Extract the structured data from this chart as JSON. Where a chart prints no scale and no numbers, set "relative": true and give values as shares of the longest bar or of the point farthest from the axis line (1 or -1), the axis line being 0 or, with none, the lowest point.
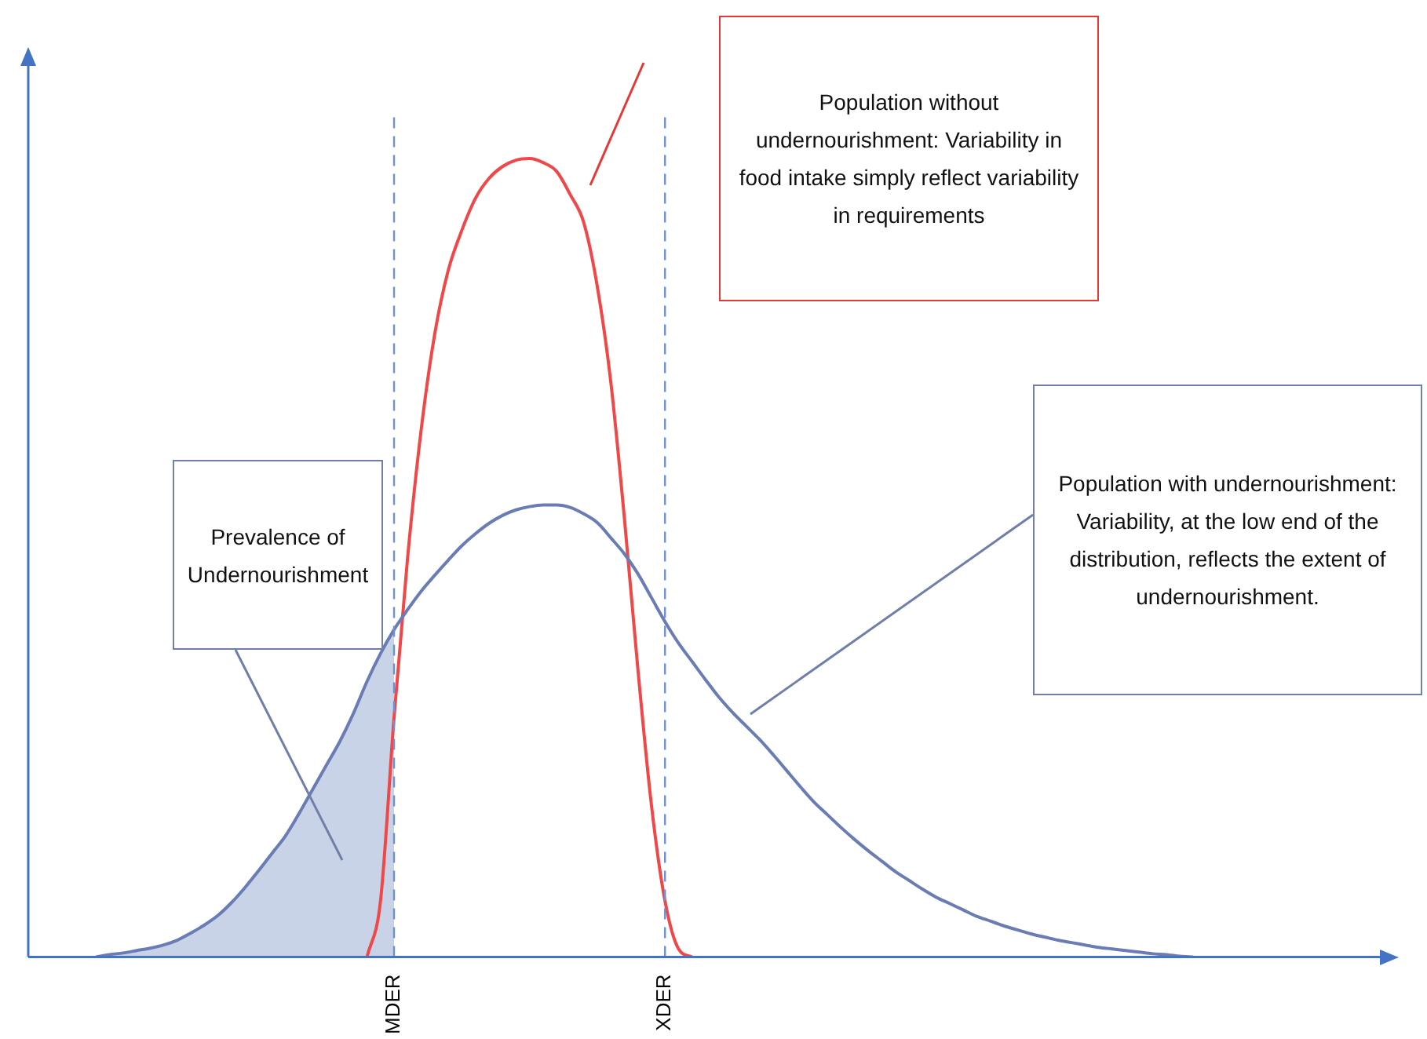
{
  "chart_data": {
    "type": "line",
    "relative": true,
    "marker": "none",
    "grid": false,
    "legend": false,
    "tick_labels": "x",
    "categories": [
      null,
      null,
      null,
      null,
      null,
      null,
      null,
      null,
      null,
      null,
      null,
      null,
      null,
      null,
      null,
      null,
      null,
      null,
      null,
      null,
      null,
      null,
      null,
      null,
      null,
      null,
      null,
      "MDER",
      null,
      null,
      null,
      null,
      null,
      null,
      null,
      null,
      null,
      null,
      null,
      null,
      null,
      null,
      null,
      null,
      null,
      null,
      null,
      "XDER",
      null,
      null,
      null,
      null,
      null,
      null,
      null,
      null,
      null,
      null,
      null,
      null,
      null,
      null,
      null,
      null,
      null,
      null,
      null,
      null,
      null,
      null,
      null,
      null,
      null,
      null,
      null,
      null,
      null,
      null,
      null,
      null,
      null,
      null,
      null,
      null,
      null,
      null,
      null,
      null,
      null,
      null,
      null,
      null,
      null,
      null,
      null,
      null,
      null,
      null,
      null,
      null,
      null
    ],
    "series": [
      {
        "type": "area",
        "color": "#c9d3e8",
        "values": [
          null,
          null,
          null,
          null,
          null,
          0,
          0.003,
          0.005,
          0.008,
          0.011,
          0.015,
          0.021,
          0.03,
          0.04,
          0.052,
          0.068,
          0.087,
          0.108,
          0.13,
          0.152,
          0.18,
          0.21,
          0.24,
          0.27,
          0.305,
          0.345,
          0.38,
          0.41,
          null,
          null,
          null,
          null,
          null,
          null,
          null,
          null,
          null,
          null,
          null,
          null,
          null,
          null,
          null,
          null,
          null,
          null,
          null,
          null,
          null,
          null,
          null,
          null,
          null,
          null,
          null,
          null,
          null,
          null,
          null,
          null,
          null,
          null,
          null,
          null,
          null,
          null,
          null,
          null,
          null,
          null,
          null,
          null,
          null,
          null,
          null,
          null,
          null,
          null,
          null,
          null,
          null,
          null,
          null,
          null,
          null,
          null,
          null,
          null,
          null,
          null,
          null,
          null,
          null,
          null,
          null,
          null,
          null,
          null,
          null,
          null,
          null
        ]
      },
      {
        "color": "#6a7cb4",
        "values": [
          null,
          null,
          null,
          null,
          null,
          0,
          0.003,
          0.005,
          0.008,
          0.011,
          0.015,
          0.021,
          0.03,
          0.04,
          0.052,
          0.068,
          0.087,
          0.108,
          0.13,
          0.152,
          0.18,
          0.21,
          0.24,
          0.27,
          0.305,
          0.345,
          0.38,
          0.41,
          0.435,
          0.458,
          0.478,
          0.497,
          0.515,
          0.53,
          0.543,
          0.553,
          0.56,
          0.564,
          0.566,
          0.566,
          0.563,
          0.555,
          0.544,
          0.525,
          0.505,
          0.48,
          0.45,
          0.42,
          0.393,
          0.37,
          0.347,
          0.325,
          0.306,
          0.289,
          0.272,
          0.253,
          0.233,
          0.213,
          0.194,
          0.178,
          0.162,
          0.147,
          0.133,
          0.12,
          0.107,
          0.096,
          0.085,
          0.075,
          0.067,
          0.059,
          0.051,
          0.045,
          0.039,
          0.034,
          0.029,
          0.025,
          0.021,
          0.018,
          0.015,
          0.012,
          0.01,
          0.008,
          0.006,
          0.004,
          0.003,
          0.001,
          0,
          null,
          null,
          null,
          null,
          null,
          null,
          null,
          null,
          null,
          null,
          null,
          null,
          null,
          null
        ]
      },
      {
        "color": "#f04848",
        "values": [
          null,
          null,
          null,
          null,
          null,
          null,
          null,
          null,
          null,
          null,
          null,
          null,
          null,
          null,
          null,
          null,
          null,
          null,
          null,
          null,
          null,
          null,
          null,
          null,
          null,
          0,
          0.07,
          0.3,
          0.5,
          0.66,
          0.78,
          0.86,
          0.91,
          0.95,
          0.975,
          0.99,
          0.998,
          1,
          0.995,
          0.984,
          0.955,
          0.92,
          0.84,
          0.72,
          0.55,
          0.36,
          0.19,
          0.07,
          0.01,
          0,
          null,
          null,
          null,
          null,
          null,
          null,
          null,
          null,
          null,
          null,
          null,
          null,
          null,
          null,
          null,
          null,
          null,
          null,
          null,
          null,
          null,
          null,
          null,
          null,
          null,
          null,
          null,
          null,
          null,
          null,
          null,
          null,
          null,
          null,
          null,
          null,
          null,
          null,
          null,
          null,
          null,
          null,
          null,
          null,
          null,
          null,
          null,
          null,
          null,
          null,
          null
        ]
      }
    ],
    "ref_lines": [
      {
        "axis": "x",
        "value": "MDER",
        "color": "#6f8fd8",
        "line_style": "dashed"
      },
      {
        "axis": "x",
        "value": "XDER",
        "color": "#6f8fd8",
        "line_style": "dashed"
      }
    ],
    "annotations": [
      "Population without undernourishment: Variability in food intake simply reflect variability in requirements",
      "Population with undernourishment: Variability, at the low end of the distribution, reflects the extent of undernourishment.",
      "Prevalence of Undernourishment"
    ]
  }
}
